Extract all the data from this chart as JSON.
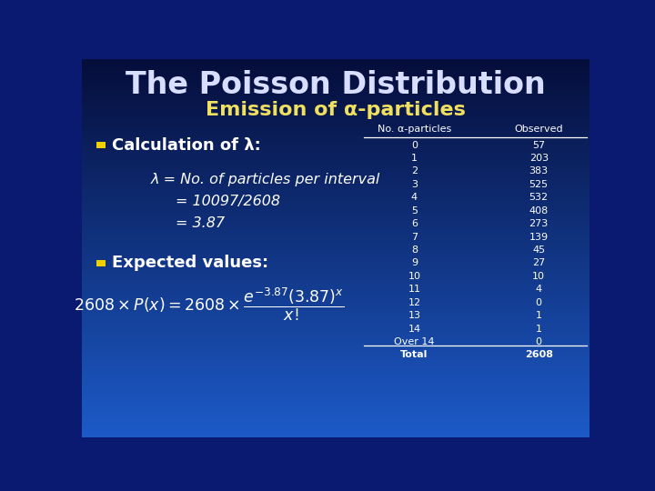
{
  "title": "The Poisson Distribution",
  "subtitle": "Emission of α-particles",
  "bg_color_top": "#000828",
  "bg_color_bottom": "#1855c8",
  "title_color": "#d8deff",
  "subtitle_color": "#f0e060",
  "bullet_color": "#f0d000",
  "table_header": [
    "No. α-particles",
    "Observed"
  ],
  "table_rows": [
    [
      "0",
      "57"
    ],
    [
      "1",
      "203"
    ],
    [
      "2",
      "383"
    ],
    [
      "3",
      "525"
    ],
    [
      "4",
      "532"
    ],
    [
      "5",
      "408"
    ],
    [
      "6",
      "273"
    ],
    [
      "7",
      "139"
    ],
    [
      "8",
      "45"
    ],
    [
      "9",
      "27"
    ],
    [
      "10",
      "10"
    ],
    [
      "11",
      "4"
    ],
    [
      "12",
      "0"
    ],
    [
      "13",
      "1"
    ],
    [
      "14",
      "1"
    ],
    [
      "Over 14",
      "0"
    ],
    [
      "Total",
      "2608"
    ]
  ],
  "bullet1_text": "Calculation of λ:",
  "calc_lines": [
    "λ = No. of particles per interval",
    "= 10097/2608",
    "= 3.87"
  ],
  "bullet2_text": "Expected values:"
}
